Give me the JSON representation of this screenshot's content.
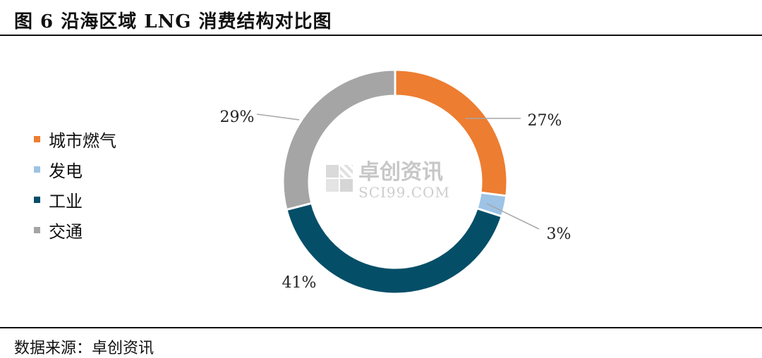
{
  "header": {
    "title": "图 6 沿海区域 LNG 消费结构对比图"
  },
  "footer": {
    "source": "数据来源：卓创资讯"
  },
  "watermark": {
    "cn": "卓创资讯",
    "en": "SCI99.COM"
  },
  "colors": {
    "city_gas": "#ED7D31",
    "power": "#9DC3E6",
    "industry": "#044E68",
    "transport": "#A5A5A5"
  },
  "chart_data": {
    "type": "pie",
    "style": "donut",
    "title": "",
    "legend_position": "left",
    "series": [
      {
        "name": "城市燃气",
        "value": 27,
        "label": "27%",
        "color": "#ED7D31"
      },
      {
        "name": "发电",
        "value": 3,
        "label": "3%",
        "color": "#9DC3E6"
      },
      {
        "name": "工业",
        "value": 41,
        "label": "41%",
        "color": "#044E68"
      },
      {
        "name": "交通",
        "value": 29,
        "label": "29%",
        "color": "#A5A5A5"
      }
    ]
  }
}
